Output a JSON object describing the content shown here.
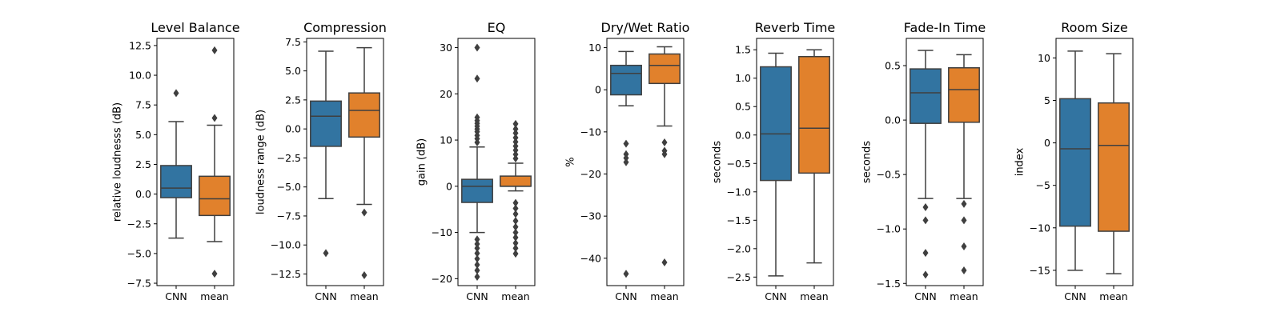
{
  "chart_data": [
    {
      "type": "box",
      "title": "Level Balance",
      "ylabel": "relative loudnesss (dB)",
      "ylim": [
        -7.7,
        13.1
      ],
      "yticks": [
        -7.5,
        -5.0,
        -2.5,
        0.0,
        2.5,
        5.0,
        7.5,
        10.0,
        12.5
      ],
      "yticklabels": [
        "−7.5",
        "−5.0",
        "−2.5",
        "0.0",
        "2.5",
        "5.0",
        "7.5",
        "10.0",
        "12.5"
      ],
      "categories": [
        "CNN",
        "mean"
      ],
      "boxes": [
        {
          "name": "CNN",
          "whisker_low": -3.7,
          "q1": -0.3,
          "median": 0.5,
          "q3": 2.4,
          "whisker_high": 6.1,
          "outliers": [
            8.5
          ]
        },
        {
          "name": "mean",
          "whisker_low": -4.0,
          "q1": -1.8,
          "median": -0.4,
          "q3": 1.5,
          "whisker_high": 5.8,
          "outliers": [
            12.1,
            6.4,
            -6.7
          ]
        }
      ]
    },
    {
      "type": "box",
      "title": "Compression",
      "ylabel": "loudness range (dB)",
      "ylim": [
        -13.5,
        7.8
      ],
      "yticks": [
        -12.5,
        -10.0,
        -7.5,
        -5.0,
        -2.5,
        0.0,
        2.5,
        5.0,
        7.5
      ],
      "yticklabels": [
        "−12.5",
        "−10.0",
        "−7.5",
        "−5.0",
        "−2.5",
        "0.0",
        "2.5",
        "5.0",
        "7.5"
      ],
      "categories": [
        "CNN",
        "mean"
      ],
      "boxes": [
        {
          "name": "CNN",
          "whisker_low": -6.0,
          "q1": -1.5,
          "median": 1.1,
          "q3": 2.4,
          "whisker_high": 6.7,
          "outliers": [
            -10.7
          ]
        },
        {
          "name": "mean",
          "whisker_low": -6.5,
          "q1": -0.7,
          "median": 1.6,
          "q3": 3.1,
          "whisker_high": 7.0,
          "outliers": [
            -7.2,
            -12.6
          ]
        }
      ]
    },
    {
      "type": "box",
      "title": "EQ",
      "ylabel": "gain (dB)",
      "ylim": [
        -21.5,
        32
      ],
      "yticks": [
        -20,
        -10,
        0,
        10,
        20,
        30
      ],
      "yticklabels": [
        "−20",
        "−10",
        "0",
        "10",
        "20",
        "30"
      ],
      "categories": [
        "CNN",
        "mean"
      ],
      "boxes": [
        {
          "name": "CNN",
          "whisker_low": -10.0,
          "q1": -3.5,
          "median": 0.0,
          "q3": 1.5,
          "whisker_high": 8.5,
          "outliers": [
            30.0,
            23.3,
            14.9,
            14.2,
            13.6,
            13.0,
            12.4,
            11.8,
            11.0,
            10.3,
            9.5,
            -11.5,
            -12.5,
            -13.4,
            -14.5,
            -15.7,
            -17.0,
            -18.2,
            -19.6
          ]
        },
        {
          "name": "mean",
          "whisker_low": -1.0,
          "q1": 0.0,
          "median": 0.0,
          "q3": 2.2,
          "whisker_high": 5.0,
          "outliers": [
            13.5,
            12.4,
            11.5,
            10.5,
            9.6,
            8.7,
            7.8,
            6.9,
            6.0,
            -3.6,
            -4.8,
            -6.0,
            -7.5,
            -8.8,
            -10.0,
            -11.1,
            -12.3,
            -13.4,
            -14.6
          ]
        }
      ]
    },
    {
      "type": "box",
      "title": "Dry/Wet Ratio",
      "ylabel": "%",
      "ylim": [
        -46.5,
        12.2
      ],
      "yticks": [
        -40,
        -30,
        -20,
        -10,
        0,
        10
      ],
      "yticklabels": [
        "−40",
        "−30",
        "−20",
        "−10",
        "0",
        "10"
      ],
      "categories": [
        "CNN",
        "mean"
      ],
      "boxes": [
        {
          "name": "CNN",
          "whisker_low": -3.8,
          "q1": -1.2,
          "median": 3.9,
          "q3": 5.8,
          "whisker_high": 9.1,
          "outliers": [
            -12.8,
            -15.3,
            -16.2,
            -17.2,
            -43.7
          ]
        },
        {
          "name": "mean",
          "whisker_low": -8.6,
          "q1": 1.5,
          "median": 5.8,
          "q3": 8.5,
          "whisker_high": 10.2,
          "outliers": [
            -12.5,
            -14.5,
            -15.3,
            -41.0
          ]
        }
      ]
    },
    {
      "type": "box",
      "title": "Reverb Time",
      "ylabel": "seconds",
      "ylim": [
        -2.65,
        1.7
      ],
      "yticks": [
        -2.5,
        -2.0,
        -1.5,
        -1.0,
        -0.5,
        0.0,
        0.5,
        1.0,
        1.5
      ],
      "yticklabels": [
        "−2.5",
        "−2.0",
        "−1.5",
        "−1.0",
        "−0.5",
        "0.0",
        "0.5",
        "1.0",
        "1.5"
      ],
      "categories": [
        "CNN",
        "mean"
      ],
      "boxes": [
        {
          "name": "CNN",
          "whisker_low": -2.48,
          "q1": -0.8,
          "median": 0.02,
          "q3": 1.2,
          "whisker_high": 1.44,
          "outliers": []
        },
        {
          "name": "mean",
          "whisker_low": -2.25,
          "q1": -0.67,
          "median": 0.12,
          "q3": 1.38,
          "whisker_high": 1.5,
          "outliers": []
        }
      ]
    },
    {
      "type": "box",
      "title": "Fade-In Time",
      "ylabel": "seconds",
      "ylim": [
        -1.52,
        0.75
      ],
      "yticks": [
        -1.5,
        -1.0,
        -0.5,
        0.0,
        0.5
      ],
      "yticklabels": [
        "−1.5",
        "−1.0",
        "−0.5",
        "0.0",
        "0.5"
      ],
      "categories": [
        "CNN",
        "mean"
      ],
      "boxes": [
        {
          "name": "CNN",
          "whisker_low": -0.72,
          "q1": -0.03,
          "median": 0.25,
          "q3": 0.47,
          "whisker_high": 0.64,
          "outliers": [
            -0.8,
            -0.92,
            -1.22,
            -1.42
          ]
        },
        {
          "name": "mean",
          "whisker_low": -0.72,
          "q1": -0.02,
          "median": 0.28,
          "q3": 0.48,
          "whisker_high": 0.6,
          "outliers": [
            -0.77,
            -0.92,
            -1.16,
            -1.38
          ]
        }
      ]
    },
    {
      "type": "box",
      "title": "Room Size",
      "ylabel": "index",
      "ylim": [
        -16.8,
        12.3
      ],
      "yticks": [
        -15,
        -10,
        -5,
        0,
        5,
        10
      ],
      "yticklabels": [
        "−15",
        "−10",
        "−5",
        "0",
        "5",
        "10"
      ],
      "categories": [
        "CNN",
        "mean"
      ],
      "boxes": [
        {
          "name": "CNN",
          "whisker_low": -15.0,
          "q1": -9.8,
          "median": -0.7,
          "q3": 5.2,
          "whisker_high": 10.8,
          "outliers": []
        },
        {
          "name": "mean",
          "whisker_low": -15.4,
          "q1": -10.4,
          "median": -0.3,
          "q3": 4.7,
          "whisker_high": 10.5,
          "outliers": []
        }
      ]
    }
  ],
  "colors": {
    "CNN": "#3274a1",
    "mean": "#e1812c",
    "line": "#3f3f3f",
    "axis": "#000000"
  }
}
